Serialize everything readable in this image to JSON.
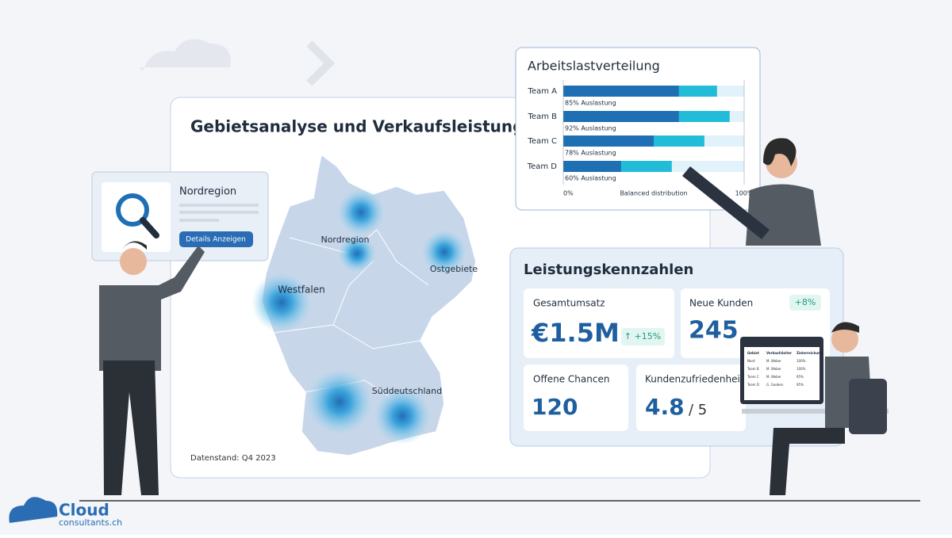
{
  "main_panel": {
    "title": "Gebietsanalyse und Verkaufsleistung",
    "regions": [
      "Nordregion",
      "Westfalen",
      "Ostgebiete",
      "Süddeutschland"
    ],
    "footnote": "Datenstand: Q4 2023"
  },
  "region_card": {
    "title": "Nordregion",
    "button": "Details Anzeigen"
  },
  "chart_data": {
    "type": "bar",
    "orientation": "horizontal",
    "title": "Arbeitslastverteilung",
    "categories": [
      "Team A",
      "Team B",
      "Team C",
      "Team D"
    ],
    "series": [
      {
        "color": "#1f6fb5",
        "values": [
          64,
          64,
          50,
          32
        ]
      },
      {
        "color": "#22bcd8",
        "values": [
          21,
          28,
          28,
          28
        ]
      }
    ],
    "bar_labels": [
      "85% Auslastung",
      "92% Auslastung",
      "78% Auslastung",
      "60% Auslastung"
    ],
    "track_color": "#e2f2fb",
    "xlim": [
      0,
      100
    ],
    "xticks": [
      {
        "value": 0,
        "label": "0%"
      },
      {
        "value": 100,
        "label": "100%"
      }
    ],
    "xlabel": "Balanced distribution"
  },
  "kpi_panel": {
    "title": "Leistungskennzahlen",
    "cards": [
      {
        "label": "Gesamtumsatz",
        "value": "€1.5M",
        "change": "↑ +15%"
      },
      {
        "label": "Neue Kunden",
        "value": "245",
        "change": "+8%"
      },
      {
        "label": "Offene Chancen",
        "value": "120"
      },
      {
        "label": "Kundenzufriedenheit",
        "value": "4.8",
        "suffix": "/ 5"
      }
    ]
  },
  "monitor_table": {
    "header": [
      "Gebiet",
      "Verkaufsleiter",
      "Zielerreichung"
    ],
    "rows": [
      [
        "Nord",
        "M. Weber",
        "100%"
      ],
      [
        "Team B",
        "M. Weber",
        "100%"
      ],
      [
        "Team C",
        "M. Weber",
        "95%"
      ],
      [
        "Team D",
        "G. Goeben",
        "95%"
      ]
    ]
  },
  "logo": {
    "name": "Cloud",
    "domain": "consultants.ch"
  }
}
